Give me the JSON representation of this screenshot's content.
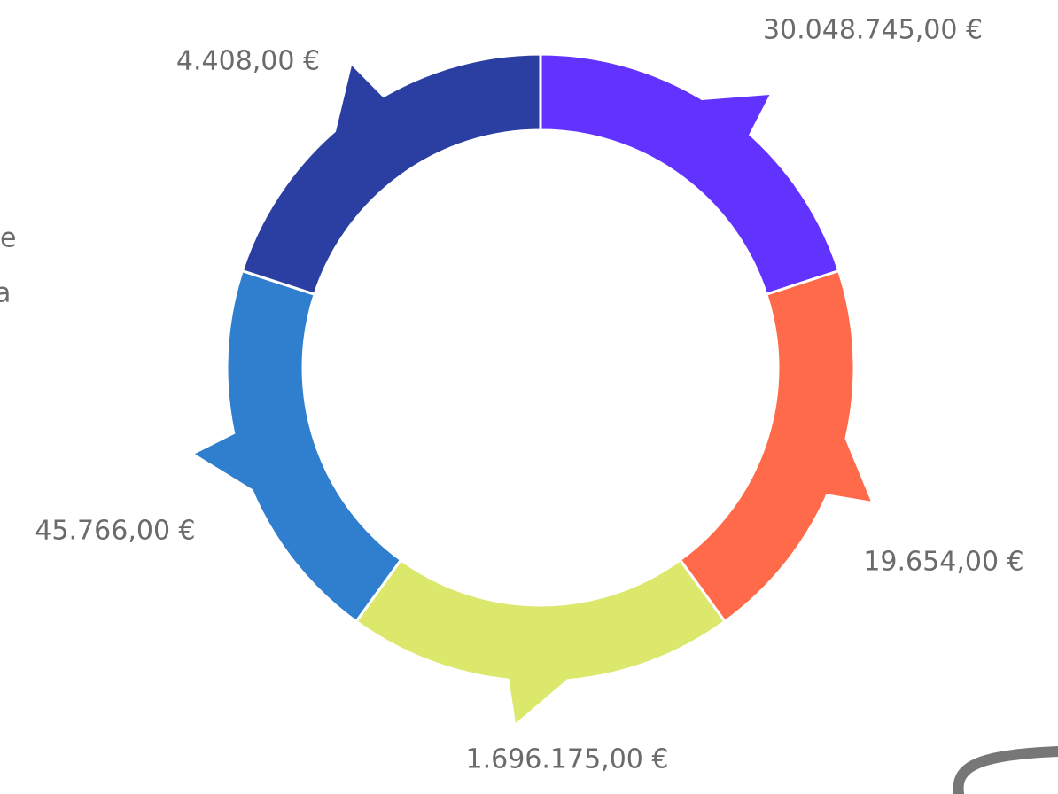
{
  "segments": [
    {
      "label": "30.048.745,00 €",
      "color": "#6233ff"
    },
    {
      "label": "19.654,00  €",
      "color": "#ff6b4a"
    },
    {
      "label": "1.696.175,00 €",
      "color": "#dbe86c"
    },
    {
      "label": "45.766,00  €",
      "color": "#2f7fce"
    },
    {
      "label": "4.408,00  €",
      "color": "#2b3fa3"
    }
  ],
  "edge_text": [
    "e",
    "a"
  ]
}
